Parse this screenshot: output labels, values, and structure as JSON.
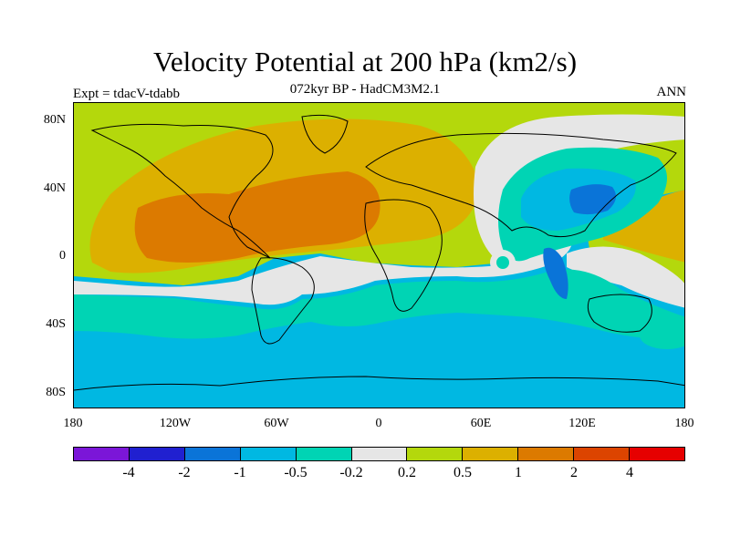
{
  "title": "Velocity Potential at 200 hPa (km2/s)",
  "subtitle": "072kyr BP - HadCM3M2.1",
  "left_label": "Expt = tdacV-tdabb",
  "right_label": "ANN",
  "lat_ticks": [
    "80N",
    "40N",
    "0",
    "40S",
    "80S"
  ],
  "lon_ticks": [
    "180",
    "120W",
    "60W",
    "0",
    "60E",
    "120E",
    "180"
  ],
  "colorbar": {
    "colors": [
      "#7b16d8",
      "#2020d0",
      "#0a74d8",
      "#00b8e2",
      "#00d4b4",
      "#e6e6e6",
      "#b4d80c",
      "#dcb000",
      "#dc7a00",
      "#dc4400",
      "#e60000"
    ],
    "labels": [
      "-4",
      "-2",
      "-1",
      "-0.5",
      "-0.2",
      "0.2",
      "0.5",
      "1",
      "2",
      "4"
    ]
  }
}
